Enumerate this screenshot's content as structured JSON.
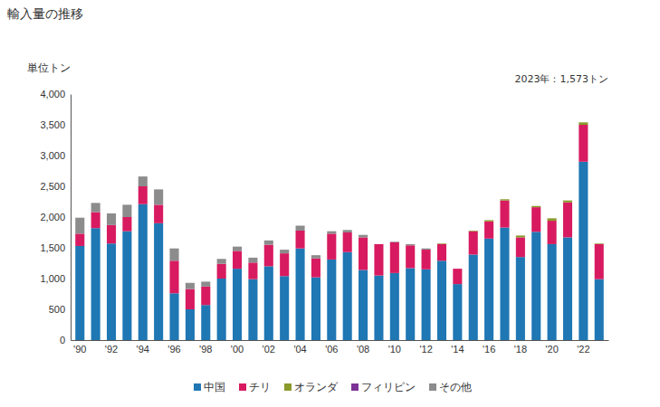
{
  "chart_data": {
    "type": "bar",
    "stacked": true,
    "title": "輸入量の推移",
    "y_label": "単位トン",
    "annotations": [
      "2023年：1,573トン"
    ],
    "legend": "bottom",
    "categories": [
      "'90",
      null,
      "'92",
      null,
      "'94",
      null,
      "'96",
      null,
      "'98",
      null,
      "'00",
      null,
      "'02",
      null,
      "'04",
      null,
      "'06",
      null,
      "'08",
      null,
      "'10",
      null,
      "'12",
      null,
      "'14",
      null,
      "'16",
      null,
      "'18",
      null,
      "'20",
      null,
      "'22",
      null
    ],
    "series": [
      {
        "name": "中国",
        "color": "#1f77b4",
        "values": [
          1530,
          1820,
          1570,
          1770,
          2210,
          1900,
          760,
          500,
          570,
          1000,
          1160,
          990,
          1200,
          1040,
          1490,
          1020,
          1310,
          1430,
          1140,
          1050,
          1090,
          1170,
          1150,
          1290,
          910,
          1390,
          1650,
          1830,
          1350,
          1760,
          1560,
          1670,
          2900,
          990
        ]
      },
      {
        "name": "チリ",
        "color": "#d81b60",
        "values": [
          200,
          260,
          300,
          230,
          290,
          300,
          530,
          330,
          300,
          240,
          290,
          270,
          350,
          370,
          290,
          310,
          420,
          320,
          530,
          510,
          500,
          370,
          320,
          270,
          250,
          380,
          280,
          440,
          320,
          400,
          380,
          570,
          600,
          570
        ]
      },
      {
        "name": "オランダ",
        "color": "#8a9a2b",
        "values": [
          0,
          0,
          0,
          0,
          0,
          0,
          0,
          0,
          0,
          0,
          0,
          0,
          0,
          0,
          0,
          0,
          0,
          0,
          0,
          0,
          0,
          0,
          0,
          10,
          0,
          10,
          20,
          20,
          30,
          20,
          40,
          30,
          40,
          10
        ]
      },
      {
        "name": "フィリピン",
        "color": "#7b3294",
        "values": [
          0,
          0,
          0,
          0,
          0,
          0,
          0,
          0,
          0,
          0,
          0,
          0,
          0,
          0,
          0,
          0,
          0,
          0,
          0,
          0,
          0,
          0,
          0,
          0,
          0,
          0,
          0,
          0,
          0,
          0,
          0,
          0,
          0,
          0
        ]
      },
      {
        "name": "その他",
        "color": "#8c8c8c",
        "values": [
          260,
          150,
          190,
          200,
          160,
          250,
          200,
          100,
          80,
          80,
          70,
          80,
          70,
          60,
          80,
          50,
          40,
          40,
          40,
          0,
          10,
          20,
          20,
          0,
          0,
          0,
          0,
          0,
          0,
          0,
          0,
          0,
          0,
          0
        ]
      }
    ],
    "ylim": [
      0,
      4000
    ],
    "yticks": [
      0,
      500,
      {
        "value": 1000,
        "label": "1,000"
      },
      {
        "value": 1500,
        "label": "1,500"
      },
      {
        "value": 2000,
        "label": "2,000"
      },
      {
        "value": 2500,
        "label": "2,500"
      },
      {
        "value": 3000,
        "label": "3,000"
      },
      {
        "value": 3500,
        "label": "3,500"
      },
      {
        "value": 4000,
        "label": "4,000"
      }
    ],
    "grid": false
  }
}
